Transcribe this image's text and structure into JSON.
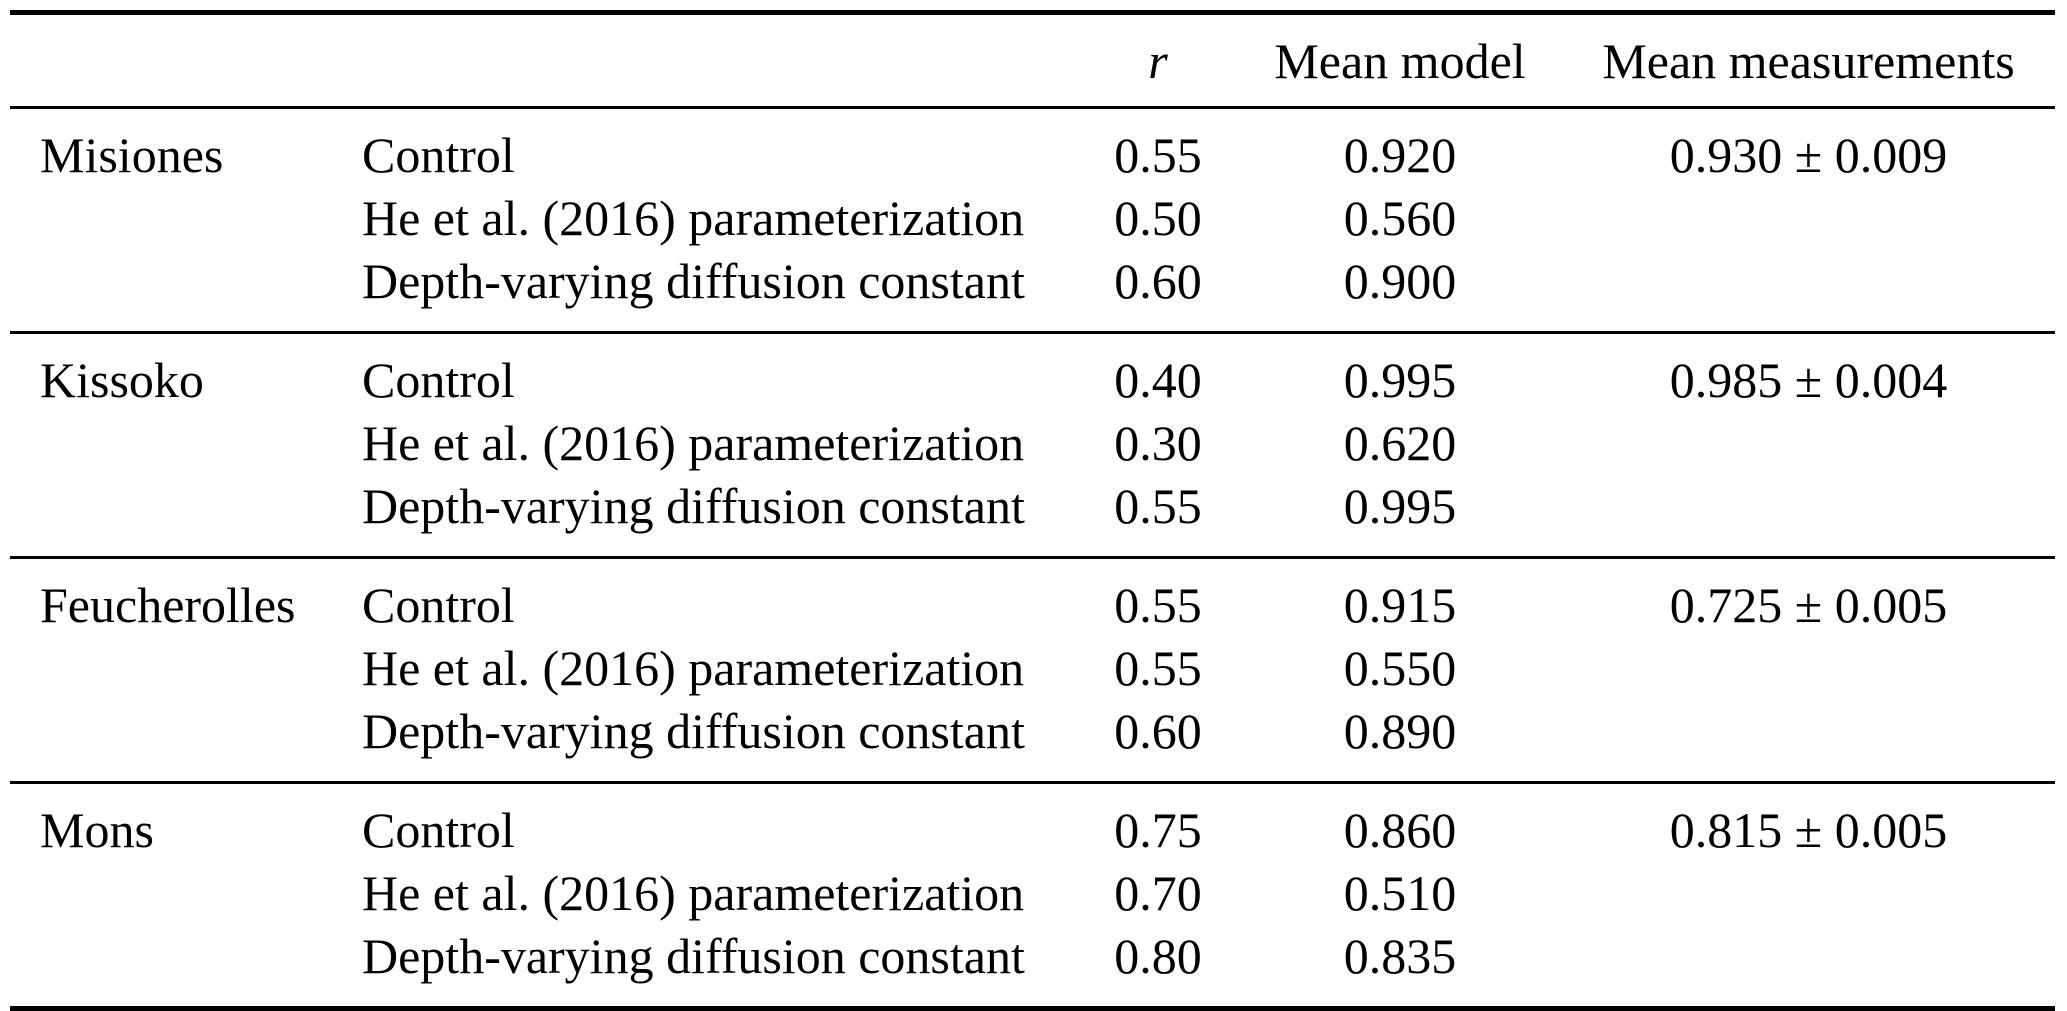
{
  "table": {
    "columns": {
      "site": "",
      "scenario": "",
      "r": "r",
      "mean_model": "Mean model",
      "mean_measurements": "Mean measurements"
    },
    "groups": [
      {
        "site": "Misiones",
        "mean_measurements": "0.930 ± 0.009",
        "rows": [
          {
            "scenario": "Control",
            "r": "0.55",
            "mean_model": "0.920"
          },
          {
            "scenario": "He et al. (2016) parameterization",
            "r": "0.50",
            "mean_model": "0.560"
          },
          {
            "scenario": "Depth-varying diffusion constant",
            "r": "0.60",
            "mean_model": "0.900"
          }
        ]
      },
      {
        "site": "Kissoko",
        "mean_measurements": "0.985 ± 0.004",
        "rows": [
          {
            "scenario": "Control",
            "r": "0.40",
            "mean_model": "0.995"
          },
          {
            "scenario": "He et al. (2016) parameterization",
            "r": "0.30",
            "mean_model": "0.620"
          },
          {
            "scenario": "Depth-varying diffusion constant",
            "r": "0.55",
            "mean_model": "0.995"
          }
        ]
      },
      {
        "site": "Feucherolles",
        "mean_measurements": "0.725 ± 0.005",
        "rows": [
          {
            "scenario": "Control",
            "r": "0.55",
            "mean_model": "0.915"
          },
          {
            "scenario": "He et al. (2016) parameterization",
            "r": "0.55",
            "mean_model": "0.550"
          },
          {
            "scenario": "Depth-varying diffusion constant",
            "r": "0.60",
            "mean_model": "0.890"
          }
        ]
      },
      {
        "site": "Mons",
        "mean_measurements": "0.815 ± 0.005",
        "rows": [
          {
            "scenario": "Control",
            "r": "0.75",
            "mean_model": "0.860"
          },
          {
            "scenario": "He et al. (2016) parameterization",
            "r": "0.70",
            "mean_model": "0.510"
          },
          {
            "scenario": "Depth-varying diffusion constant",
            "r": "0.80",
            "mean_model": "0.835"
          }
        ]
      }
    ]
  }
}
